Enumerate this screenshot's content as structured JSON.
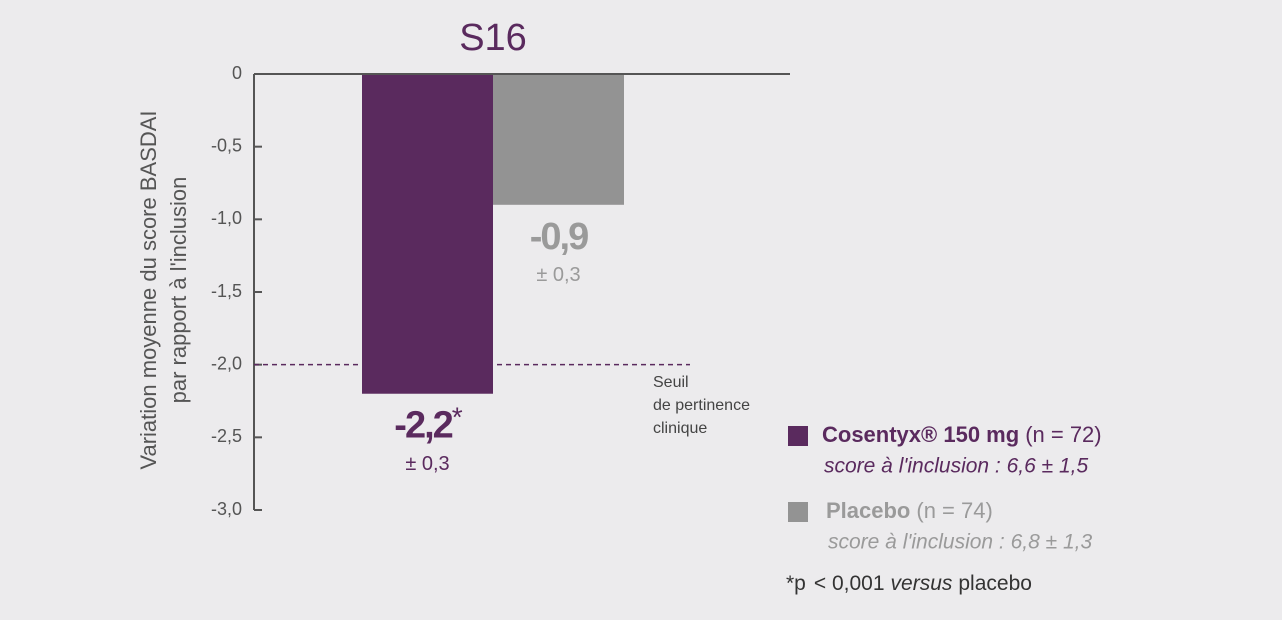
{
  "chart_data": {
    "type": "bar",
    "title": "S16",
    "ylabel": [
      "Variation moyenne du score BASDAI",
      "par rapport à l'inclusion"
    ],
    "ylim": [
      -3,
      0
    ],
    "yticks": [
      0,
      {
        "value": -0.5,
        "label": "-0,5"
      },
      {
        "value": -1,
        "label": "-1,0"
      },
      {
        "value": -1.5,
        "label": "-1,5"
      },
      {
        "value": -2,
        "label": "-2,0"
      },
      {
        "value": -2.5,
        "label": "-2,5"
      },
      {
        "value": -3,
        "label": "-3,0"
      }
    ],
    "series": [
      {
        "name": "Cosentyx® 150 mg",
        "n_label": "(n = 72)",
        "baseline": "score à l'inclusion : 6,6 ± 1,5",
        "color": "#5a2a5e",
        "label_color": "#5a2a5e",
        "values": [
          -2.2
        ],
        "value_labels": [
          "-2,2"
        ],
        "marker": "*",
        "error_labels": [
          "± 0,3"
        ]
      },
      {
        "name": "Placebo",
        "n_label": "(n = 74)",
        "baseline": "score à l'inclusion : 6,8 ± 1,3",
        "color": "#939393",
        "label_color": "#9a9a9a",
        "values": [
          -0.9
        ],
        "value_labels": [
          "-0,9"
        ],
        "error_labels": [
          "± 0,3"
        ]
      }
    ],
    "threshold": {
      "value": -2,
      "label": [
        "Seuil",
        "de pertinence",
        "clinique"
      ],
      "color": "#5a2a5e"
    },
    "footnote": [
      "*p",
      "< 0,001",
      "versus",
      "placebo"
    ]
  }
}
